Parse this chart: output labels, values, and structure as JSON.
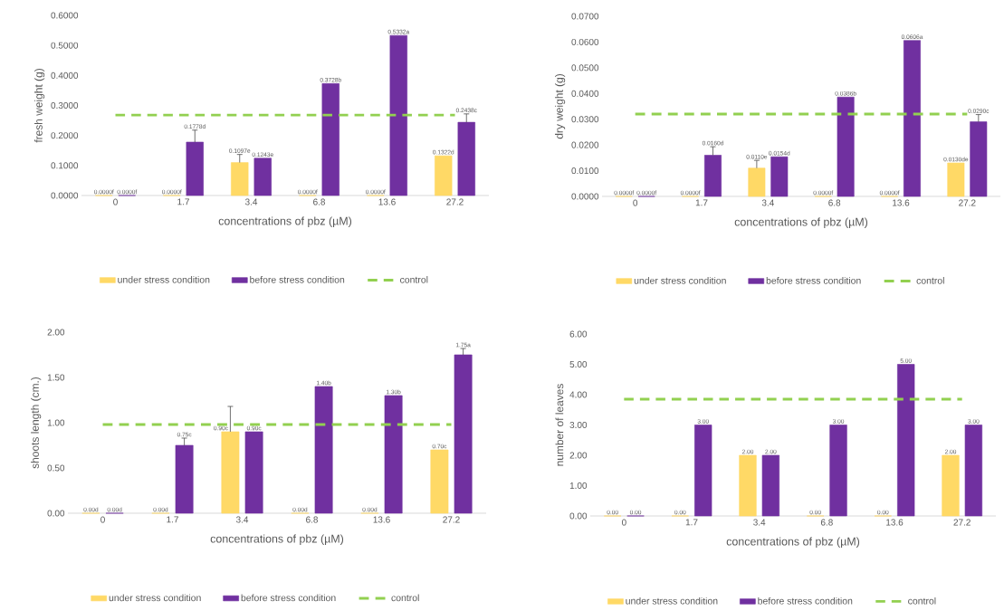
{
  "chart_data": [
    {
      "type": "bar",
      "categories": [
        "0",
        "1.7",
        "3.4",
        "6.8",
        "13.6",
        "27.2"
      ],
      "xlabel": "concentrations of pbz (µM)",
      "ylabel": "fresh weight  (g)",
      "ylim": [
        0,
        0.6
      ],
      "yticks": [
        {
          "value": 0,
          "label": "0.0000"
        },
        {
          "value": 0.1,
          "label": "0.1000"
        },
        {
          "value": 0.2,
          "label": "0.2000"
        },
        {
          "value": 0.3,
          "label": "0.3000"
        },
        {
          "value": 0.4,
          "label": "0.4000"
        },
        {
          "value": 0.5,
          "label": "0.5000"
        },
        {
          "value": 0.6,
          "label": "0.6000"
        }
      ],
      "legend": "bottom",
      "series": [
        {
          "name": "under stress condition",
          "color": "#ffd966",
          "values": [
            0,
            0,
            0.1097,
            0,
            0,
            0.1322
          ],
          "errors": [
            null,
            null,
            0.027,
            null,
            null,
            null
          ],
          "value_labels": [
            "0.0000f",
            "0.0000f",
            "0.1097e",
            "0.0000f",
            "0.0000f",
            "0.1322d"
          ]
        },
        {
          "name": "before stress condition",
          "color": "#7030a0",
          "values": [
            0,
            0.1778,
            0.1243,
            0.3728,
            0.5332,
            0.2438
          ],
          "errors": [
            null,
            0.04,
            null,
            null,
            null,
            0.028
          ],
          "value_labels": [
            "0.0000f",
            "0.1778d",
            "0.1243e",
            "0.3728b",
            "0.5332a",
            "0.2438c"
          ]
        },
        {
          "name": "control",
          "type": "line",
          "color": "#92d050",
          "line_style": "dashed",
          "values": [
            0.268,
            0.268,
            0.268,
            0.268,
            0.268,
            0.268
          ]
        }
      ]
    },
    {
      "type": "bar",
      "categories": [
        "0",
        "1.7",
        "3.4",
        "6.8",
        "13.6",
        "27.2"
      ],
      "xlabel": "concentrations of pbz (µM)",
      "ylabel": "dry weight (g)",
      "ylim": [
        0,
        0.07
      ],
      "yticks": [
        {
          "value": 0,
          "label": "0.0000"
        },
        {
          "value": 0.01,
          "label": "0.0100"
        },
        {
          "value": 0.02,
          "label": "0.0200"
        },
        {
          "value": 0.03,
          "label": "0.0300"
        },
        {
          "value": 0.04,
          "label": "0.0400"
        },
        {
          "value": 0.05,
          "label": "0.0500"
        },
        {
          "value": 0.06,
          "label": "0.0600"
        },
        {
          "value": 0.07,
          "label": "0.0700"
        }
      ],
      "legend": "bottom",
      "series": [
        {
          "name": "under stress condition",
          "color": "#ffd966",
          "values": [
            0,
            0,
            0.011,
            0,
            0,
            0.013
          ],
          "errors": [
            null,
            null,
            0.003,
            null,
            null,
            null
          ],
          "value_labels": [
            "0.0000f",
            "0.0000f",
            "0.0110e",
            "0.0000f",
            "0.0000f",
            "0.0130de"
          ]
        },
        {
          "name": "before stress condition",
          "color": "#7030a0",
          "values": [
            0,
            0.016,
            0.0154,
            0.0386,
            0.0606,
            0.029
          ],
          "errors": [
            null,
            0.0033,
            null,
            null,
            null,
            0.0028
          ],
          "value_labels": [
            "0.0000f",
            "0.0160d",
            "0.0154d",
            "0.0386b",
            "0.0606a",
            "0.0290c"
          ]
        },
        {
          "name": "control",
          "type": "line",
          "color": "#92d050",
          "line_style": "dashed",
          "values": [
            0.032,
            0.032,
            0.032,
            0.032,
            0.032,
            0.032
          ]
        }
      ]
    },
    {
      "type": "bar",
      "categories": [
        "0",
        "1.7",
        "3.4",
        "6.8",
        "13.6",
        "27.2"
      ],
      "xlabel": "concentrations of pbz (µM)",
      "ylabel": "shoots length (cm.)",
      "ylim": [
        0,
        2
      ],
      "yticks": [
        {
          "value": 0,
          "label": "0.00"
        },
        {
          "value": 0.5,
          "label": "0.50"
        },
        {
          "value": 1,
          "label": "1.00"
        },
        {
          "value": 1.5,
          "label": "1.50"
        },
        {
          "value": 2,
          "label": "2.00"
        }
      ],
      "legend": "bottom",
      "series": [
        {
          "name": "under stress condition",
          "color": "#ffd966",
          "values": [
            0,
            0,
            0.9,
            0,
            0,
            0.7
          ],
          "errors": [
            null,
            null,
            0.28,
            null,
            null,
            null
          ],
          "value_labels": [
            "0.00d",
            "0.00d",
            "0.90c",
            "0.00d",
            "0.00d",
            "0.70c"
          ]
        },
        {
          "name": "before stress condition",
          "color": "#7030a0",
          "values": [
            0,
            0.75,
            0.9,
            1.4,
            1.3,
            1.75
          ],
          "errors": [
            null,
            0.08,
            null,
            null,
            null,
            0.07
          ],
          "value_labels": [
            "0.00d",
            "0.75c",
            "0.90c",
            "1.40b",
            "1.30b",
            "1.75a"
          ]
        },
        {
          "name": "control",
          "type": "line",
          "color": "#92d050",
          "line_style": "dashed",
          "values": [
            0.98,
            0.98,
            0.98,
            0.98,
            0.98,
            0.98
          ]
        }
      ]
    },
    {
      "type": "bar",
      "categories": [
        "0",
        "1.7",
        "3.4",
        "6.8",
        "13.6",
        "27.2"
      ],
      "xlabel": "concentrations of pbz (µM)",
      "ylabel": "number of leaves",
      "ylim": [
        0,
        6
      ],
      "yticks": [
        {
          "value": 0,
          "label": "0.00"
        },
        {
          "value": 1,
          "label": "1.00"
        },
        {
          "value": 2,
          "label": "2.00"
        },
        {
          "value": 3,
          "label": "3.00"
        },
        {
          "value": 4,
          "label": "4.00"
        },
        {
          "value": 5,
          "label": "5.00"
        },
        {
          "value": 6,
          "label": "6.00"
        }
      ],
      "legend": "bottom",
      "series": [
        {
          "name": "under stress condition",
          "color": "#ffd966",
          "values": [
            0,
            0,
            2,
            0,
            0,
            2
          ],
          "value_labels": [
            "0.00",
            "0.00",
            "2.00",
            "0.00",
            "0.00",
            "2.00"
          ]
        },
        {
          "name": "before stress condition",
          "color": "#7030a0",
          "values": [
            0,
            3,
            2,
            3,
            5,
            3
          ],
          "value_labels": [
            "0.00",
            "3.00",
            "2.00",
            "3.00",
            "5.00",
            "3.00"
          ]
        },
        {
          "name": "control",
          "type": "line",
          "color": "#92d050",
          "line_style": "dashed",
          "values": [
            3.85,
            3.85,
            3.85,
            3.85,
            3.85,
            3.85
          ]
        }
      ]
    }
  ]
}
